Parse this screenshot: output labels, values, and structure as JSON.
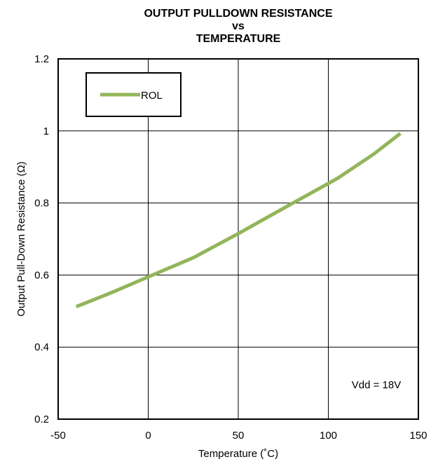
{
  "chart_data": {
    "type": "line",
    "title_lines": [
      "OUTPUT PULLDOWN RESISTANCE",
      "vs",
      "TEMPERATURE"
    ],
    "xlabel": "Temperature (˚C)",
    "ylabel": "Output Pull-Down Resistance (Ω)",
    "xlim": [
      -50,
      150
    ],
    "ylim": [
      0.2,
      1.2
    ],
    "xticks": [
      -50,
      0,
      50,
      100,
      150
    ],
    "yticks": [
      0.2,
      0.4,
      0.6,
      0.8,
      1.0,
      1.2
    ],
    "xtick_labels": [
      "-50",
      "0",
      "50",
      "100",
      "150"
    ],
    "ytick_labels": [
      "0.2",
      "0.4",
      "0.6",
      "0.8",
      "1",
      "1.2"
    ],
    "grid": true,
    "legend": {
      "placement": "top-left",
      "entries": [
        "ROL"
      ]
    },
    "series": [
      {
        "name": "ROL",
        "color": "#92b55a",
        "x": [
          -40,
          -20,
          0,
          25,
          50,
          75,
          105,
          125,
          140
        ],
        "y": [
          0.512,
          0.552,
          0.595,
          0.648,
          0.715,
          0.785,
          0.868,
          0.935,
          0.993
        ]
      }
    ],
    "annotation": "Vdd = 18V"
  }
}
